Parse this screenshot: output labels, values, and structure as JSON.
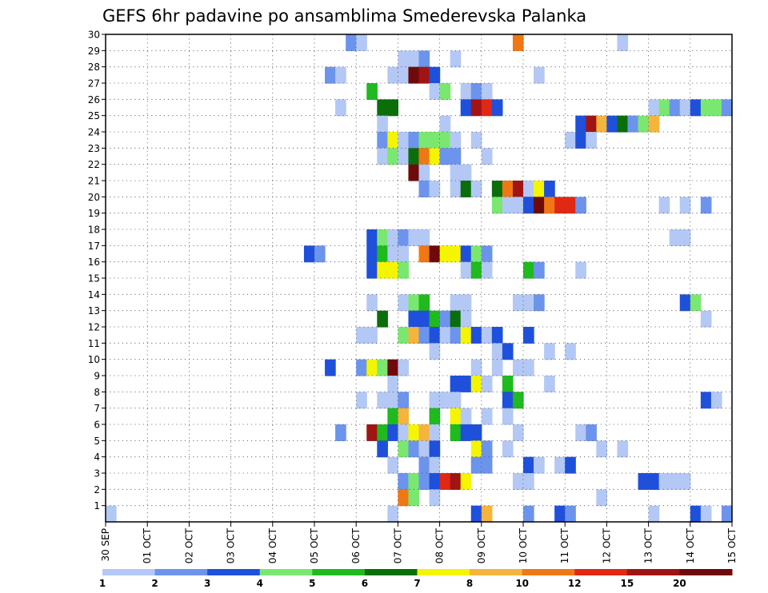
{
  "chart_data": {
    "type": "heatmap",
    "title": "GEFS 6hr padavine po ansamblima Smederevska Palanka",
    "xlabel": "",
    "ylabel": "",
    "x_tick_labels": [
      "30 SEP",
      "01 OCT",
      "02 OCT",
      "03 OCT",
      "04 OCT",
      "05 OCT",
      "06 OCT",
      "07 OCT",
      "08 OCT",
      "09 OCT",
      "10 OCT",
      "11 OCT",
      "12 OCT",
      "13 OCT",
      "14 OCT",
      "15 OCT"
    ],
    "y_tick_labels": [
      "1",
      "2",
      "3",
      "4",
      "5",
      "6",
      "7",
      "8",
      "9",
      "10",
      "11",
      "12",
      "13",
      "14",
      "15",
      "16",
      "17",
      "18",
      "19",
      "20",
      "21",
      "22",
      "23",
      "24",
      "25",
      "26",
      "27",
      "28",
      "29",
      "30"
    ],
    "xlim": [
      0,
      60
    ],
    "ylim": [
      0,
      30
    ],
    "grid": true,
    "colorbar": {
      "labels": [
        "1",
        "2",
        "3",
        "4",
        "5",
        "6",
        "7",
        "8",
        "10",
        "12",
        "15",
        "20"
      ],
      "colors": [
        "#b4c8f5",
        "#6c94ec",
        "#1e50dc",
        "#7ae870",
        "#1eba1e",
        "#0a6e0a",
        "#f5f500",
        "#f5b43c",
        "#f07814",
        "#e02814",
        "#a01414",
        "#6e0a0a"
      ]
    },
    "cells": [
      [
        24,
        30,
        2
      ],
      [
        25,
        30,
        1
      ],
      [
        40,
        30,
        9
      ],
      [
        50,
        30,
        1
      ],
      [
        29,
        29,
        1
      ],
      [
        30,
        29,
        1
      ],
      [
        31,
        29,
        2
      ],
      [
        34,
        29,
        1
      ],
      [
        22,
        28,
        2
      ],
      [
        23,
        28,
        1
      ],
      [
        28,
        28,
        1
      ],
      [
        29,
        28,
        1
      ],
      [
        30,
        28,
        12
      ],
      [
        31,
        28,
        11
      ],
      [
        32,
        28,
        3
      ],
      [
        42,
        28,
        1
      ],
      [
        26,
        27,
        5
      ],
      [
        32,
        27,
        1
      ],
      [
        33,
        27,
        4
      ],
      [
        35,
        27,
        1
      ],
      [
        36,
        27,
        2
      ],
      [
        37,
        27,
        1
      ],
      [
        23,
        26,
        1
      ],
      [
        27,
        26,
        6
      ],
      [
        28,
        26,
        6
      ],
      [
        35,
        26,
        3
      ],
      [
        36,
        26,
        11
      ],
      [
        37,
        26,
        10
      ],
      [
        38,
        26,
        3
      ],
      [
        53,
        26,
        1
      ],
      [
        54,
        26,
        4
      ],
      [
        55,
        26,
        2
      ],
      [
        56,
        26,
        1
      ],
      [
        57,
        26,
        3
      ],
      [
        58,
        26,
        4
      ],
      [
        59,
        26,
        4
      ],
      [
        60,
        26,
        2
      ],
      [
        27,
        25,
        1
      ],
      [
        33,
        25,
        1
      ],
      [
        46,
        25,
        3
      ],
      [
        47,
        25,
        11
      ],
      [
        48,
        25,
        8
      ],
      [
        49,
        25,
        3
      ],
      [
        50,
        25,
        6
      ],
      [
        51,
        25,
        2
      ],
      [
        52,
        25,
        4
      ],
      [
        53,
        25,
        8
      ],
      [
        27,
        24,
        2
      ],
      [
        28,
        24,
        7
      ],
      [
        29,
        24,
        1
      ],
      [
        30,
        24,
        2
      ],
      [
        31,
        24,
        4
      ],
      [
        32,
        24,
        4
      ],
      [
        33,
        24,
        4
      ],
      [
        34,
        24,
        1
      ],
      [
        36,
        24,
        1
      ],
      [
        45,
        24,
        1
      ],
      [
        46,
        24,
        3
      ],
      [
        47,
        24,
        1
      ],
      [
        27,
        23,
        1
      ],
      [
        28,
        23,
        4
      ],
      [
        29,
        23,
        1
      ],
      [
        30,
        23,
        6
      ],
      [
        31,
        23,
        9
      ],
      [
        32,
        23,
        7
      ],
      [
        33,
        23,
        2
      ],
      [
        34,
        23,
        2
      ],
      [
        37,
        23,
        1
      ],
      [
        30,
        22,
        12
      ],
      [
        31,
        22,
        1
      ],
      [
        34,
        22,
        1
      ],
      [
        35,
        22,
        1
      ],
      [
        31,
        21,
        2
      ],
      [
        32,
        21,
        1
      ],
      [
        34,
        21,
        1
      ],
      [
        35,
        21,
        6
      ],
      [
        36,
        21,
        1
      ],
      [
        38,
        21,
        6
      ],
      [
        39,
        21,
        9
      ],
      [
        40,
        21,
        11
      ],
      [
        41,
        21,
        1
      ],
      [
        42,
        21,
        7
      ],
      [
        43,
        21,
        3
      ],
      [
        38,
        20,
        4
      ],
      [
        39,
        20,
        1
      ],
      [
        40,
        20,
        1
      ],
      [
        41,
        20,
        3
      ],
      [
        42,
        20,
        12
      ],
      [
        43,
        20,
        9
      ],
      [
        44,
        20,
        10
      ],
      [
        45,
        20,
        10
      ],
      [
        46,
        20,
        2
      ],
      [
        54,
        20,
        1
      ],
      [
        56,
        20,
        1
      ],
      [
        58,
        20,
        2
      ],
      [
        26,
        18,
        3
      ],
      [
        27,
        18,
        4
      ],
      [
        28,
        18,
        1
      ],
      [
        29,
        18,
        2
      ],
      [
        30,
        18,
        1
      ],
      [
        31,
        18,
        1
      ],
      [
        55,
        18,
        1
      ],
      [
        56,
        18,
        1
      ],
      [
        20,
        17,
        3
      ],
      [
        21,
        17,
        2
      ],
      [
        26,
        17,
        3
      ],
      [
        27,
        17,
        5
      ],
      [
        28,
        17,
        1
      ],
      [
        29,
        17,
        1
      ],
      [
        31,
        17,
        9
      ],
      [
        32,
        17,
        12
      ],
      [
        33,
        17,
        7
      ],
      [
        34,
        17,
        7
      ],
      [
        35,
        17,
        3
      ],
      [
        36,
        17,
        4
      ],
      [
        37,
        17,
        2
      ],
      [
        26,
        16,
        3
      ],
      [
        27,
        16,
        7
      ],
      [
        28,
        16,
        7
      ],
      [
        29,
        16,
        4
      ],
      [
        35,
        16,
        1
      ],
      [
        36,
        16,
        5
      ],
      [
        37,
        16,
        1
      ],
      [
        41,
        16,
        5
      ],
      [
        42,
        16,
        2
      ],
      [
        46,
        16,
        1
      ],
      [
        26,
        14,
        1
      ],
      [
        29,
        14,
        1
      ],
      [
        30,
        14,
        4
      ],
      [
        31,
        14,
        5
      ],
      [
        34,
        14,
        1
      ],
      [
        35,
        14,
        1
      ],
      [
        40,
        14,
        1
      ],
      [
        41,
        14,
        1
      ],
      [
        42,
        14,
        2
      ],
      [
        56,
        14,
        3
      ],
      [
        57,
        14,
        4
      ],
      [
        27,
        13,
        6
      ],
      [
        30,
        13,
        3
      ],
      [
        31,
        13,
        3
      ],
      [
        32,
        13,
        5
      ],
      [
        33,
        13,
        2
      ],
      [
        34,
        13,
        6
      ],
      [
        35,
        13,
        1
      ],
      [
        58,
        13,
        1
      ],
      [
        25,
        12,
        1
      ],
      [
        26,
        12,
        1
      ],
      [
        29,
        12,
        4
      ],
      [
        30,
        12,
        8
      ],
      [
        31,
        12,
        2
      ],
      [
        32,
        12,
        3
      ],
      [
        33,
        12,
        1
      ],
      [
        34,
        12,
        2
      ],
      [
        35,
        12,
        7
      ],
      [
        36,
        12,
        3
      ],
      [
        37,
        12,
        1
      ],
      [
        38,
        12,
        3
      ],
      [
        41,
        12,
        3
      ],
      [
        32,
        11,
        1
      ],
      [
        38,
        11,
        1
      ],
      [
        39,
        11,
        3
      ],
      [
        43,
        11,
        1
      ],
      [
        45,
        11,
        1
      ],
      [
        22,
        10,
        3
      ],
      [
        25,
        10,
        2
      ],
      [
        26,
        10,
        7
      ],
      [
        27,
        10,
        4
      ],
      [
        28,
        10,
        12
      ],
      [
        29,
        10,
        1
      ],
      [
        36,
        10,
        1
      ],
      [
        38,
        10,
        1
      ],
      [
        40,
        10,
        1
      ],
      [
        41,
        10,
        1
      ],
      [
        28,
        9,
        1
      ],
      [
        34,
        9,
        3
      ],
      [
        35,
        9,
        3
      ],
      [
        36,
        9,
        7
      ],
      [
        37,
        9,
        1
      ],
      [
        39,
        9,
        5
      ],
      [
        43,
        9,
        1
      ],
      [
        25,
        8,
        1
      ],
      [
        27,
        8,
        1
      ],
      [
        28,
        8,
        1
      ],
      [
        29,
        8,
        2
      ],
      [
        32,
        8,
        1
      ],
      [
        33,
        8,
        1
      ],
      [
        34,
        8,
        1
      ],
      [
        39,
        8,
        3
      ],
      [
        40,
        8,
        5
      ],
      [
        58,
        8,
        3
      ],
      [
        59,
        8,
        1
      ],
      [
        28,
        7,
        5
      ],
      [
        29,
        7,
        8
      ],
      [
        32,
        7,
        5
      ],
      [
        34,
        7,
        7
      ],
      [
        35,
        7,
        1
      ],
      [
        37,
        7,
        1
      ],
      [
        39,
        7,
        1
      ],
      [
        23,
        6,
        2
      ],
      [
        26,
        6,
        11
      ],
      [
        27,
        6,
        5
      ],
      [
        28,
        6,
        3
      ],
      [
        29,
        6,
        1
      ],
      [
        30,
        6,
        7
      ],
      [
        31,
        6,
        8
      ],
      [
        32,
        6,
        1
      ],
      [
        34,
        6,
        5
      ],
      [
        35,
        6,
        3
      ],
      [
        36,
        6,
        3
      ],
      [
        40,
        6,
        1
      ],
      [
        46,
        6,
        1
      ],
      [
        47,
        6,
        2
      ],
      [
        27,
        5,
        3
      ],
      [
        29,
        5,
        4
      ],
      [
        30,
        5,
        2
      ],
      [
        31,
        5,
        1
      ],
      [
        32,
        5,
        3
      ],
      [
        36,
        5,
        7
      ],
      [
        37,
        5,
        2
      ],
      [
        39,
        5,
        1
      ],
      [
        48,
        5,
        1
      ],
      [
        50,
        5,
        1
      ],
      [
        28,
        4,
        1
      ],
      [
        31,
        4,
        2
      ],
      [
        32,
        4,
        1
      ],
      [
        36,
        4,
        2
      ],
      [
        37,
        4,
        2
      ],
      [
        41,
        4,
        3
      ],
      [
        42,
        4,
        1
      ],
      [
        44,
        4,
        1
      ],
      [
        45,
        4,
        3
      ],
      [
        29,
        3,
        2
      ],
      [
        30,
        3,
        4
      ],
      [
        31,
        3,
        2
      ],
      [
        32,
        3,
        3
      ],
      [
        33,
        3,
        10
      ],
      [
        34,
        3,
        11
      ],
      [
        35,
        3,
        7
      ],
      [
        40,
        3,
        1
      ],
      [
        41,
        3,
        1
      ],
      [
        52,
        3,
        3
      ],
      [
        53,
        3,
        3
      ],
      [
        54,
        3,
        1
      ],
      [
        55,
        3,
        1
      ],
      [
        56,
        3,
        1
      ],
      [
        29,
        2,
        9
      ],
      [
        30,
        2,
        4
      ],
      [
        32,
        2,
        1
      ],
      [
        48,
        2,
        1
      ],
      [
        1,
        1,
        1
      ],
      [
        28,
        1,
        1
      ],
      [
        36,
        1,
        3
      ],
      [
        37,
        1,
        8
      ],
      [
        41,
        1,
        2
      ],
      [
        44,
        1,
        3
      ],
      [
        45,
        1,
        2
      ],
      [
        53,
        1,
        1
      ],
      [
        57,
        1,
        3
      ],
      [
        58,
        1,
        1
      ],
      [
        60,
        1,
        2
      ]
    ]
  }
}
